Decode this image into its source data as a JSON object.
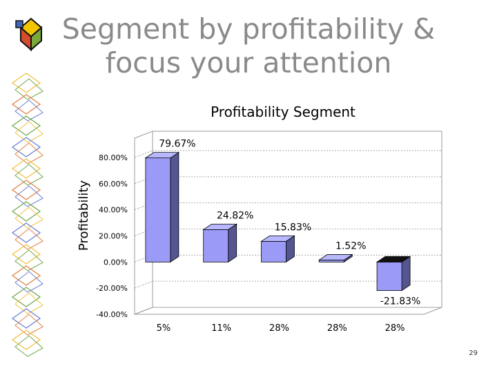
{
  "slide": {
    "title_line1": "Segment by profitability &",
    "title_line2": "focus your attention",
    "page_number": "29"
  },
  "colors": {
    "title_gray": "#8a8a8a",
    "bar_front": "#9b9bf7",
    "bar_side": "#55558f",
    "bar_top": "#b8b8ff",
    "negative_top": "#111111",
    "logo_yellow": "#f2c500",
    "logo_red": "#d44c2a",
    "logo_green": "#79a83c",
    "logo_blue": "#4166b8"
  },
  "chart_data": {
    "type": "bar",
    "style": "3d-column",
    "title": "Profitability Segment",
    "ylabel": "Profitability",
    "xlabel": "",
    "categories": [
      "5%",
      "11%",
      "28%",
      "28%",
      "28%"
    ],
    "values": [
      79.67,
      24.82,
      15.83,
      1.52,
      -21.83
    ],
    "data_labels": [
      "79.67%",
      "24.82%",
      "15.83%",
      "1.52%",
      "-21.83%"
    ],
    "ylim": [
      -40,
      80
    ],
    "yticks": [
      "-40.00%",
      "-20.00%",
      "0.00%",
      "20.00%",
      "40.00%",
      "60.00%",
      "80.00%"
    ],
    "grid": true,
    "legend": "none"
  }
}
